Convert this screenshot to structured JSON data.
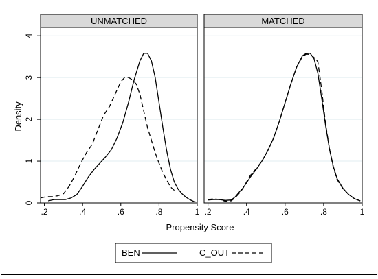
{
  "chart_data": {
    "type": "line",
    "xlabel": "Propensity Score",
    "ylabel": "Density",
    "xlim": [
      0.18,
      1.0
    ],
    "ylim": [
      0,
      4.2
    ],
    "x_ticks": [
      0.2,
      0.4,
      0.6,
      0.8,
      1.0
    ],
    "x_tick_labels": [
      ".2",
      ".4",
      ".6",
      ".8",
      "1"
    ],
    "y_ticks": [
      0,
      1,
      2,
      3,
      4
    ],
    "y_tick_labels": [
      "0",
      "1",
      "2",
      "3",
      "4"
    ],
    "grid": true,
    "legend_position": "bottom-center",
    "legend": [
      {
        "name": "BEN",
        "style": "solid"
      },
      {
        "name": "C_OUT",
        "style": "dashed"
      }
    ],
    "panels": [
      {
        "title": "UNMATCHED",
        "series": [
          {
            "name": "BEN",
            "style": "solid",
            "x": [
              0.22,
              0.25,
              0.28,
              0.31,
              0.34,
              0.37,
              0.4,
              0.43,
              0.46,
              0.49,
              0.52,
              0.55,
              0.58,
              0.61,
              0.64,
              0.67,
              0.7,
              0.72,
              0.74,
              0.76,
              0.78,
              0.8,
              0.82,
              0.84,
              0.86,
              0.88,
              0.9,
              0.92,
              0.94,
              0.96,
              0.98,
              0.99
            ],
            "y": [
              0.05,
              0.08,
              0.08,
              0.08,
              0.12,
              0.2,
              0.4,
              0.62,
              0.8,
              0.95,
              1.1,
              1.27,
              1.55,
              1.92,
              2.4,
              2.95,
              3.4,
              3.58,
              3.58,
              3.4,
              3.0,
              2.4,
              1.8,
              1.25,
              0.8,
              0.5,
              0.33,
              0.22,
              0.14,
              0.08,
              0.04,
              0.03
            ]
          },
          {
            "name": "C_OUT",
            "style": "dashed",
            "x": [
              0.18,
              0.21,
              0.24,
              0.27,
              0.3,
              0.33,
              0.36,
              0.39,
              0.42,
              0.45,
              0.48,
              0.51,
              0.54,
              0.57,
              0.6,
              0.62,
              0.64,
              0.66,
              0.68,
              0.7,
              0.72,
              0.74,
              0.76,
              0.78,
              0.8,
              0.82,
              0.84,
              0.86,
              0.88
            ],
            "y": [
              0.12,
              0.15,
              0.15,
              0.17,
              0.22,
              0.4,
              0.65,
              0.95,
              1.2,
              1.4,
              1.75,
              2.1,
              2.3,
              2.6,
              2.9,
              3.0,
              3.0,
              2.95,
              2.85,
              2.6,
              2.2,
              1.8,
              1.5,
              1.2,
              0.95,
              0.72,
              0.55,
              0.38,
              0.3
            ]
          }
        ]
      },
      {
        "title": "MATCHED",
        "series": [
          {
            "name": "BEN",
            "style": "solid",
            "x": [
              0.2,
              0.23,
              0.26,
              0.29,
              0.32,
              0.34,
              0.36,
              0.38,
              0.4,
              0.42,
              0.45,
              0.48,
              0.51,
              0.54,
              0.57,
              0.6,
              0.63,
              0.66,
              0.69,
              0.71,
              0.73,
              0.75,
              0.77,
              0.79,
              0.81,
              0.83,
              0.85,
              0.87,
              0.9,
              0.93,
              0.96,
              0.99
            ],
            "y": [
              0.07,
              0.08,
              0.08,
              0.06,
              0.07,
              0.14,
              0.25,
              0.35,
              0.48,
              0.62,
              0.8,
              1.0,
              1.25,
              1.55,
              1.95,
              2.4,
              2.85,
              3.25,
              3.52,
              3.58,
              3.58,
              3.45,
              3.1,
              2.5,
              1.85,
              1.3,
              0.88,
              0.58,
              0.35,
              0.2,
              0.1,
              0.05
            ]
          },
          {
            "name": "C_OUT",
            "style": "dashed",
            "x": [
              0.2,
              0.23,
              0.26,
              0.29,
              0.32,
              0.34,
              0.36,
              0.38,
              0.4,
              0.42,
              0.45,
              0.48,
              0.51,
              0.54,
              0.57,
              0.6,
              0.63,
              0.66,
              0.69,
              0.71,
              0.73,
              0.75,
              0.77,
              0.79,
              0.81,
              0.83,
              0.85,
              0.87,
              0.9,
              0.93,
              0.96,
              0.99
            ],
            "y": [
              0.08,
              0.1,
              0.08,
              0.04,
              0.05,
              0.12,
              0.22,
              0.34,
              0.5,
              0.66,
              0.82,
              1.0,
              1.25,
              1.55,
              1.95,
              2.4,
              2.85,
              3.25,
              3.5,
              3.56,
              3.55,
              3.48,
              3.38,
              2.7,
              1.9,
              1.3,
              0.85,
              0.56,
              0.34,
              0.2,
              0.1,
              0.05
            ]
          }
        ]
      }
    ]
  }
}
